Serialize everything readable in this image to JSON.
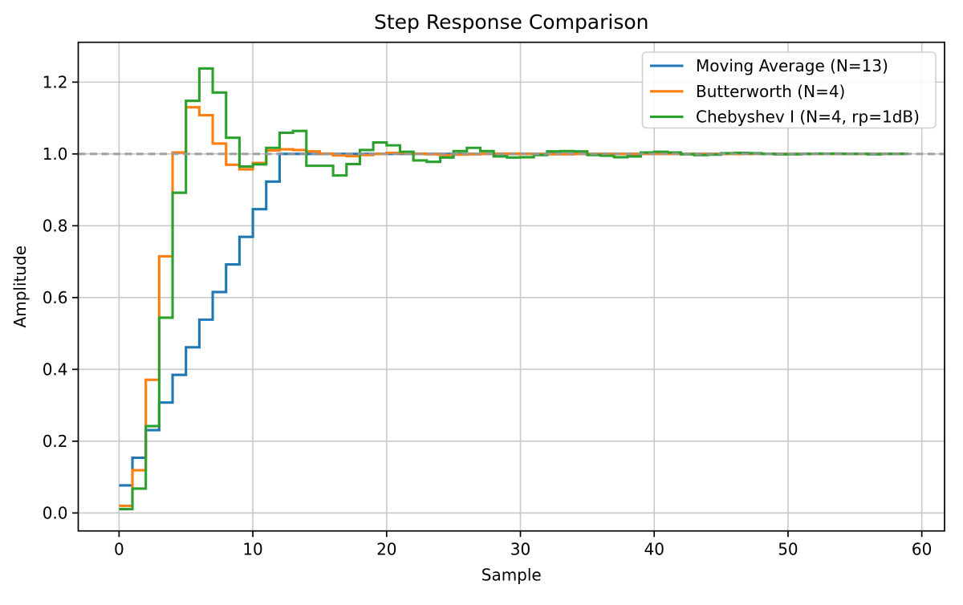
{
  "figure": {
    "title": "Step Response Comparison",
    "xlabel": "Sample",
    "ylabel": "Amplitude"
  },
  "chart_data": {
    "type": "line",
    "subtype": "step",
    "step_where": "post",
    "title": "Step Response Comparison",
    "xlabel": "Sample",
    "ylabel": "Amplitude",
    "x_start": 0,
    "x_step": 1,
    "n_points": 60,
    "xlim": [
      -3.05,
      61.7
    ],
    "ylim": [
      -0.05,
      1.311
    ],
    "x_ticks": [
      0,
      10,
      20,
      30,
      40,
      50,
      60
    ],
    "x_tick_labels": [
      "0",
      "10",
      "20",
      "30",
      "40",
      "50",
      "60"
    ],
    "y_ticks": [
      0.0,
      0.2,
      0.4,
      0.6,
      0.8,
      1.0,
      1.2
    ],
    "y_tick_labels": [
      "0.0",
      "0.2",
      "0.4",
      "0.6",
      "0.8",
      "1.0",
      "1.2"
    ],
    "grid": true,
    "grid_color": "#c9c9c9",
    "legend_position": "upper right",
    "reference_line": {
      "y": 1.0,
      "color": "#9a9a9a",
      "dash": "9,5.5",
      "width": 3.1
    },
    "series": [
      {
        "name": "Moving Average (N=13)",
        "color": "#1f77b4",
        "values": [
          0.0769,
          0.1538,
          0.2308,
          0.3077,
          0.3846,
          0.4615,
          0.5385,
          0.6154,
          0.6923,
          0.7692,
          0.8462,
          0.9231,
          1.0,
          1.0,
          1.0,
          1.0,
          1.0,
          1.0,
          1.0,
          1.0,
          1.0,
          1.0,
          1.0,
          1.0,
          1.0,
          1.0,
          1.0,
          1.0,
          1.0,
          1.0,
          1.0,
          1.0,
          1.0,
          1.0,
          1.0,
          1.0,
          1.0,
          1.0,
          1.0,
          1.0,
          1.0,
          1.0,
          1.0,
          1.0,
          1.0,
          1.0,
          1.0,
          1.0,
          1.0,
          1.0,
          1.0,
          1.0,
          1.0,
          1.0,
          1.0,
          1.0,
          1.0,
          1.0,
          1.0,
          1.0
        ]
      },
      {
        "name": "Butterworth (N=4)",
        "color": "#ff7f0e",
        "values": [
          0.02,
          0.119,
          0.371,
          0.715,
          1.004,
          1.13,
          1.108,
          1.029,
          0.97,
          0.957,
          0.975,
          1.01,
          1.013,
          1.011,
          1.007,
          1.001,
          0.996,
          0.994,
          0.997,
          1.0,
          1.003,
          1.002,
          1.001,
          0.999,
          0.997,
          0.998,
          0.999,
          1.0,
          1.001,
          1.001,
          1.0,
          1.0,
          0.999,
          0.999,
          1.0,
          1.0,
          1.0,
          1.0,
          1.0,
          1.0,
          1.0,
          1.0,
          1.0,
          1.0,
          1.0,
          1.0,
          1.0,
          1.0,
          1.0,
          1.0,
          1.0,
          1.0,
          1.0,
          1.0,
          1.0,
          1.0,
          1.0,
          1.0,
          1.0,
          1.0
        ]
      },
      {
        "name": "Chebyshev I (N=4, rp=1dB)",
        "color": "#2ca02c",
        "values": [
          0.011,
          0.068,
          0.242,
          0.544,
          0.892,
          1.148,
          1.238,
          1.171,
          1.045,
          0.965,
          0.971,
          1.017,
          1.059,
          1.064,
          0.967,
          0.967,
          0.94,
          0.972,
          1.011,
          1.032,
          1.024,
          1.006,
          0.982,
          0.978,
          0.99,
          1.008,
          1.017,
          1.008,
          0.993,
          0.99,
          0.991,
          0.997,
          1.007,
          1.008,
          1.007,
          0.997,
          0.995,
          0.991,
          0.993,
          1.004,
          1.006,
          1.004,
          0.999,
          0.997,
          0.998,
          1.002,
          1.003,
          1.002,
          1.0,
          0.999,
          0.999,
          1.0,
          1.001,
          1.001,
          1.0,
          1.0,
          0.999,
          1.0,
          1.0,
          1.0
        ]
      }
    ]
  }
}
